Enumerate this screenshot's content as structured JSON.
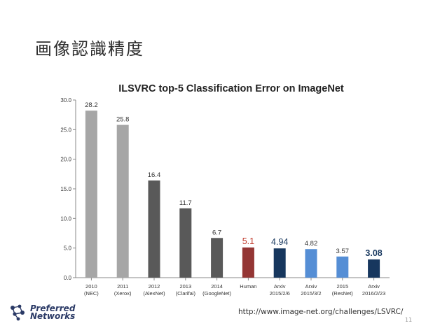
{
  "slide": {
    "title": "画像認識精度",
    "source_url": "http://www.image-net.org/challenges/LSVRC/",
    "page_number": "11",
    "logo_line1": "Preferred",
    "logo_line2": "Networks"
  },
  "colors": {
    "gray_light": "#a6a6a6",
    "gray_dark": "#595959",
    "red": "#943634",
    "navy": "#17375e",
    "blue": "#558ed5",
    "label_red": "#c0392b",
    "label_navy": "#17375e"
  },
  "chart_data": {
    "type": "bar",
    "title": "ILSVRC top-5 Classification Error on ImageNet",
    "ylim": [
      0,
      30
    ],
    "y_ticks": [
      "0.0",
      "5.0",
      "10.0",
      "15.0",
      "20.0",
      "25.0",
      "30.0"
    ],
    "grid": false,
    "categories": [
      [
        "2010",
        "(NEC)"
      ],
      [
        "2011",
        "(Xerox)"
      ],
      [
        "2012",
        "(AlexNet)"
      ],
      [
        "2013",
        "(Clarifai)"
      ],
      [
        "2014",
        "(GoogleNet)"
      ],
      [
        "Human"
      ],
      [
        "Arxiv",
        "2015/2/6"
      ],
      [
        "Arxiv",
        "2015/3/2"
      ],
      [
        "2015",
        "(ResNet)"
      ],
      [
        "Arxiv",
        "2016/2/23"
      ]
    ],
    "values": [
      28.2,
      25.8,
      16.4,
      11.7,
      6.7,
      5.1,
      4.94,
      4.82,
      3.57,
      3.08
    ],
    "value_labels": [
      "28.2",
      "25.8",
      "16.4",
      "11.7",
      "6.7",
      "5.1",
      "4.94",
      "4.82",
      "3.57",
      "3.08"
    ],
    "bar_colors": [
      "#a6a6a6",
      "#a6a6a6",
      "#595959",
      "#595959",
      "#595959",
      "#943634",
      "#17375e",
      "#558ed5",
      "#558ed5",
      "#17375e"
    ],
    "label_colors": [
      "#333333",
      "#333333",
      "#333333",
      "#333333",
      "#333333",
      "#c0392b",
      "#17375e",
      "#333333",
      "#333333",
      "#17375e"
    ],
    "label_emphasis": [
      false,
      false,
      false,
      false,
      false,
      true,
      true,
      false,
      false,
      true
    ]
  }
}
